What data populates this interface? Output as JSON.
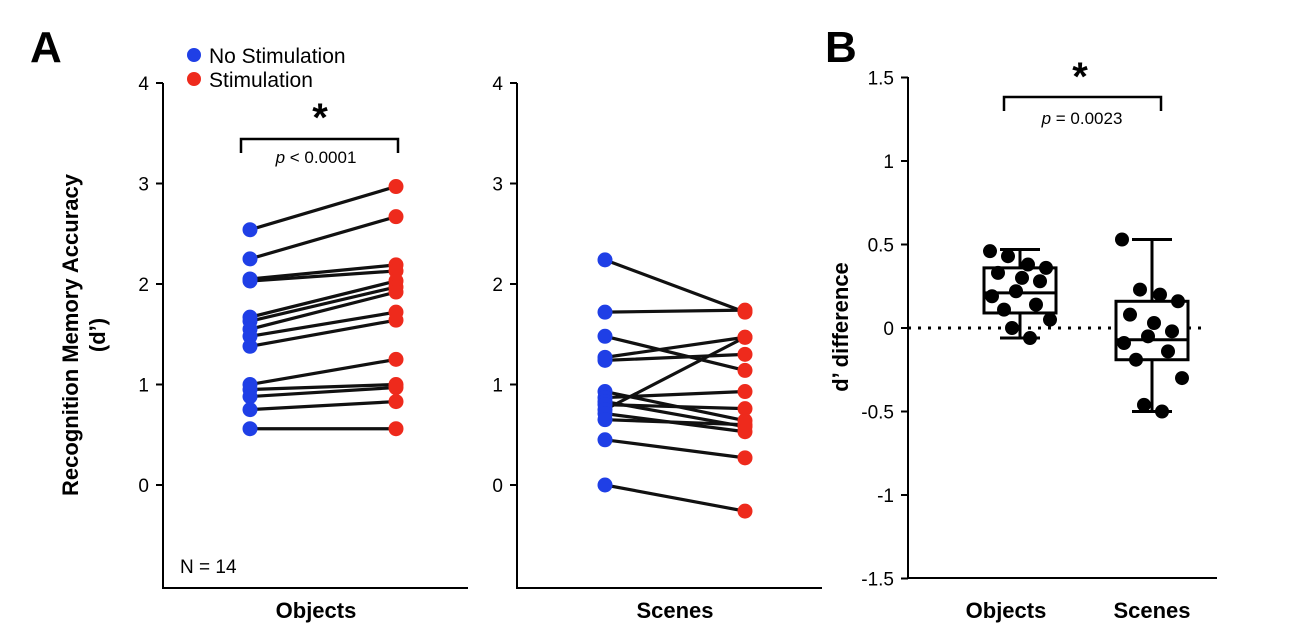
{
  "panel_labels": {
    "a": "A",
    "b": "B"
  },
  "colors": {
    "no_stim": "#1f3fe6",
    "stim": "#ee2a1c",
    "line": "#111111",
    "box": "#000000"
  },
  "chart_data": [
    {
      "type": "scatter",
      "subtype": "paired-dot-plot",
      "panel": "A",
      "category": "Objects",
      "ylabel": "Recognition Memory Accuracy",
      "ylabel_unit": "(d’)",
      "ylim": [
        -1,
        4
      ],
      "yticks": [
        "0",
        "1",
        "2",
        "3",
        "4"
      ],
      "legend": [
        {
          "name": "No Stimulation",
          "color": "#1f3fe6"
        },
        {
          "name": "Stimulation",
          "color": "#ee2a1c"
        }
      ],
      "legend_position": "top-left",
      "annotation": "N = 14",
      "significance": {
        "star": "*",
        "p_italic": "p",
        "p_rest": " < 0.0001"
      },
      "series": [
        {
          "name": "No Stimulation",
          "values": [
            2.54,
            2.25,
            2.05,
            2.03,
            1.67,
            1.63,
            1.55,
            1.48,
            1.38,
            1.0,
            0.95,
            0.88,
            0.75,
            0.56
          ]
        },
        {
          "name": "Stimulation",
          "values": [
            2.97,
            2.67,
            2.19,
            2.13,
            2.03,
            1.97,
            1.92,
            1.72,
            1.64,
            1.25,
            1.0,
            0.97,
            0.83,
            0.56
          ]
        }
      ]
    },
    {
      "type": "scatter",
      "subtype": "paired-dot-plot",
      "panel": "A",
      "category": "Scenes",
      "ylim": [
        -1,
        4
      ],
      "yticks": [
        "0",
        "1",
        "2",
        "3",
        "4"
      ],
      "series": [
        {
          "name": "No Stimulation",
          "values": [
            2.24,
            1.72,
            1.48,
            1.27,
            1.24,
            0.93,
            0.87,
            0.83,
            0.8,
            0.75,
            0.71,
            0.65,
            0.45,
            0.0
          ]
        },
        {
          "name": "Stimulation",
          "values": [
            1.72,
            1.74,
            1.14,
            1.47,
            1.3,
            0.64,
            0.93,
            0.58,
            0.76,
            1.47,
            0.53,
            0.6,
            0.27,
            -0.26
          ]
        }
      ]
    },
    {
      "type": "box",
      "panel": "B",
      "ylabel": "d’ difference",
      "ylim": [
        -1.5,
        1.5
      ],
      "yticks": [
        "1.5",
        "1",
        "0.5",
        "0",
        "-0.5",
        "-1",
        "-1.5"
      ],
      "categories": [
        "Objects",
        "Scenes"
      ],
      "reference_line": 0,
      "significance": {
        "star": "*",
        "p_italic": "p",
        "p_rest": " = 0.0023"
      },
      "boxes": [
        {
          "name": "Objects",
          "min": -0.06,
          "q1": 0.09,
          "median": 0.21,
          "q3": 0.36,
          "max": 0.47,
          "points": [
            0.46,
            0.43,
            0.38,
            0.36,
            0.33,
            0.3,
            0.28,
            0.22,
            0.19,
            0.14,
            0.11,
            0.05,
            0.0,
            -0.06
          ]
        },
        {
          "name": "Scenes",
          "min": -0.5,
          "q1": -0.19,
          "median": -0.07,
          "q3": 0.16,
          "max": 0.53,
          "points": [
            0.53,
            0.23,
            0.2,
            0.16,
            0.08,
            0.03,
            -0.02,
            -0.05,
            -0.09,
            -0.14,
            -0.19,
            -0.3,
            -0.46,
            -0.5
          ]
        }
      ]
    }
  ]
}
